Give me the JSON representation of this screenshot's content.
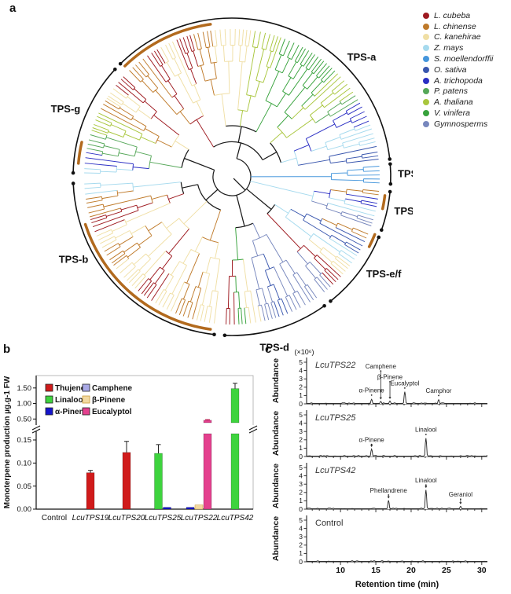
{
  "figure": {
    "panel_a_letter": "a",
    "panel_b_letter": "b",
    "panel_c_letter": "c"
  },
  "panel_a": {
    "species_legend": [
      {
        "label": "L. cubeba",
        "color": "#9e1a20"
      },
      {
        "label": "L. chinense",
        "color": "#bf7a2a"
      },
      {
        "label": "C. kanehirae",
        "color": "#f0dfa5"
      },
      {
        "label": "Z. mays",
        "color": "#a6daee"
      },
      {
        "label": "S. moellendorffii",
        "color": "#4596dc"
      },
      {
        "label": "O. sativa",
        "color": "#3a57ae"
      },
      {
        "label": "A. trichopoda",
        "color": "#2b2fc4"
      },
      {
        "label": "P. patens",
        "color": "#55a758"
      },
      {
        "label": "A. thaliana",
        "color": "#a9c63d"
      },
      {
        "label": "V. vinifera",
        "color": "#37a23c"
      },
      {
        "label": "Gymnosperms",
        "color": "#7787bd"
      }
    ],
    "clades": [
      {
        "name": "TPS-a",
        "start": -45,
        "end": 84,
        "label_angle": 44
      },
      {
        "name": "TPS-h",
        "start": 85,
        "end": 93,
        "label_angle": 89
      },
      {
        "name": "TPS-c",
        "start": 95,
        "end": 110,
        "label_angle": 102
      },
      {
        "name": "TPS-e/f",
        "start": 112,
        "end": 142,
        "label_angle": 126
      },
      {
        "name": "TPS-d",
        "start": 144,
        "end": 183,
        "label_angle": 166
      },
      {
        "name": "TPS-b",
        "start": 186,
        "end": 268,
        "label_angle": 240
      },
      {
        "name": "TPS-g",
        "start": 271,
        "end": 313,
        "label_angle": 294
      }
    ],
    "highlight_color": "#b26a1e",
    "highlight_arcs": [
      [
        316,
        352
      ],
      [
        275,
        283
      ],
      [
        188,
        252
      ],
      [
        112,
        117
      ],
      [
        97,
        102
      ]
    ],
    "color_segments": [
      [
        -45,
        -36,
        1
      ],
      [
        -36,
        -30,
        0
      ],
      [
        -30,
        -22,
        2
      ],
      [
        -22,
        -16,
        0
      ],
      [
        -16,
        -8,
        1
      ],
      [
        -8,
        0,
        2
      ],
      [
        0,
        8,
        2
      ],
      [
        8,
        20,
        8
      ],
      [
        20,
        32,
        9
      ],
      [
        32,
        45,
        9
      ],
      [
        45,
        55,
        8
      ],
      [
        55,
        60,
        7
      ],
      [
        60,
        68,
        6
      ],
      [
        68,
        78,
        3
      ],
      [
        78,
        84,
        5
      ],
      [
        84,
        93,
        4
      ],
      [
        93,
        98,
        1
      ],
      [
        98,
        102,
        6
      ],
      [
        102,
        106,
        3
      ],
      [
        106,
        110,
        10
      ],
      [
        110,
        116,
        1
      ],
      [
        116,
        122,
        5
      ],
      [
        122,
        127,
        3
      ],
      [
        127,
        132,
        2
      ],
      [
        132,
        137,
        0
      ],
      [
        137,
        142,
        10
      ],
      [
        142,
        156,
        10
      ],
      [
        156,
        162,
        5
      ],
      [
        162,
        168,
        10
      ],
      [
        168,
        174,
        2
      ],
      [
        174,
        179,
        9
      ],
      [
        179,
        183,
        0
      ],
      [
        183,
        195,
        2
      ],
      [
        195,
        203,
        1
      ],
      [
        203,
        212,
        2
      ],
      [
        212,
        220,
        0
      ],
      [
        220,
        232,
        2
      ],
      [
        232,
        240,
        1
      ],
      [
        240,
        248,
        2
      ],
      [
        248,
        254,
        0
      ],
      [
        254,
        262,
        1
      ],
      [
        262,
        268,
        3
      ],
      [
        268,
        274,
        3
      ],
      [
        274,
        280,
        6
      ],
      [
        280,
        288,
        7
      ],
      [
        288,
        296,
        8
      ],
      [
        296,
        302,
        1
      ],
      [
        302,
        308,
        2
      ],
      [
        308,
        315,
        0
      ]
    ]
  },
  "chart_data": [
    {
      "type": "bar",
      "title": "",
      "ylabel": "Monoterpene production µg.g-1 FW",
      "categories": [
        "Control",
        "LcuTPS19",
        "LcuTPS20",
        "LcuTPS25",
        "LcuTPS22",
        "LcuTPS42"
      ],
      "categories_italic": [
        false,
        true,
        true,
        true,
        true,
        true
      ],
      "axis_break": {
        "lower_max": 0.167,
        "upper_min": 0.33,
        "upper_max": 1.9
      },
      "lower_ticks": [
        "0.00",
        "0.05",
        "0.10",
        "0.15"
      ],
      "lower_tick_values": [
        0,
        0.05,
        0.1,
        0.15
      ],
      "upper_ticks": [
        "0.50",
        "1.00",
        "1.50"
      ],
      "upper_tick_values": [
        0.5,
        1.0,
        1.5
      ],
      "legend_position": "top-left-inside",
      "series": [
        {
          "name": "Thujene",
          "color": "#d01b1b",
          "values": [
            0,
            0.079,
            0.123,
            0,
            0,
            0
          ],
          "errors": [
            0,
            0.005,
            0.024,
            0,
            0,
            0
          ]
        },
        {
          "name": "Linalool",
          "color": "#3ed33e",
          "values": [
            0,
            0,
            0,
            0.121,
            0,
            1.48
          ],
          "errors": [
            0,
            0,
            0,
            0.019,
            0,
            0.17
          ]
        },
        {
          "name": "α-Pinene",
          "color": "#1414cc",
          "values": [
            0,
            0,
            0,
            0.004,
            0.004,
            0
          ],
          "errors": [
            0,
            0,
            0,
            0,
            0,
            0
          ]
        },
        {
          "name": "Camphene",
          "color": "#a9a9e6",
          "values": [
            0,
            0,
            0,
            0,
            0,
            0
          ],
          "errors": [
            0,
            0,
            0,
            0,
            0,
            0
          ]
        },
        {
          "name": "β-Pinene",
          "color": "#f2d9a0",
          "border": "#c89a36",
          "values": [
            0,
            0,
            0,
            0,
            0.009,
            0
          ],
          "errors": [
            0,
            0,
            0,
            0,
            0,
            0
          ]
        },
        {
          "name": "Eucalyptol",
          "color": "#e4408e",
          "error_color": "#c00040",
          "values": [
            0,
            0,
            0,
            0,
            0.46,
            0
          ],
          "errors": [
            0,
            0,
            0,
            0,
            0.02,
            0
          ]
        }
      ]
    },
    {
      "type": "line",
      "scale_label": "(×10⁶)",
      "xlabel": "Retention time (min)",
      "ylabel": "Abundance",
      "xlim": [
        5.2,
        30.8
      ],
      "ylim": [
        0,
        5
      ],
      "x_ticks": [
        10,
        15,
        20,
        25,
        30
      ],
      "y_ticks": [
        0,
        1,
        2,
        3,
        4,
        5
      ],
      "plots": [
        {
          "name": "LcuTPS22",
          "italic": true,
          "peaks": [
            {
              "name": "α-Pinene",
              "x": 14.4,
              "height": 0.55,
              "label_y": 1.35
            },
            {
              "name": "Camphene",
              "x": 15.7,
              "height": 0.3,
              "label_y": 4.25
            },
            {
              "name": "β-Pinene",
              "x": 17.0,
              "height": 0.35,
              "label_y": 2.95
            },
            {
              "name": "Eucalyptol",
              "x": 19.1,
              "height": 1.45,
              "label_y": 2.2
            },
            {
              "name": "Camphor",
              "x": 23.9,
              "height": 0.5,
              "label_y": 1.3
            }
          ]
        },
        {
          "name": "LcuTPS25",
          "italic": true,
          "peaks": [
            {
              "name": "α-Pinene",
              "x": 14.4,
              "height": 0.9,
              "label_y": 1.75
            },
            {
              "name": "Linalool",
              "x": 22.1,
              "height": 2.2,
              "label_y": 2.95
            }
          ]
        },
        {
          "name": "LcuTPS42",
          "italic": true,
          "peaks": [
            {
              "name": "Phellandrene",
              "x": 16.8,
              "height": 1.05,
              "label_y": 2.0
            },
            {
              "name": "Linalool",
              "x": 22.1,
              "height": 2.3,
              "label_y": 3.2
            },
            {
              "name": "Geraniol",
              "x": 27.0,
              "height": 0.35,
              "label_y": 1.5
            }
          ]
        },
        {
          "name": "Control",
          "italic": false,
          "peaks": []
        }
      ]
    }
  ]
}
